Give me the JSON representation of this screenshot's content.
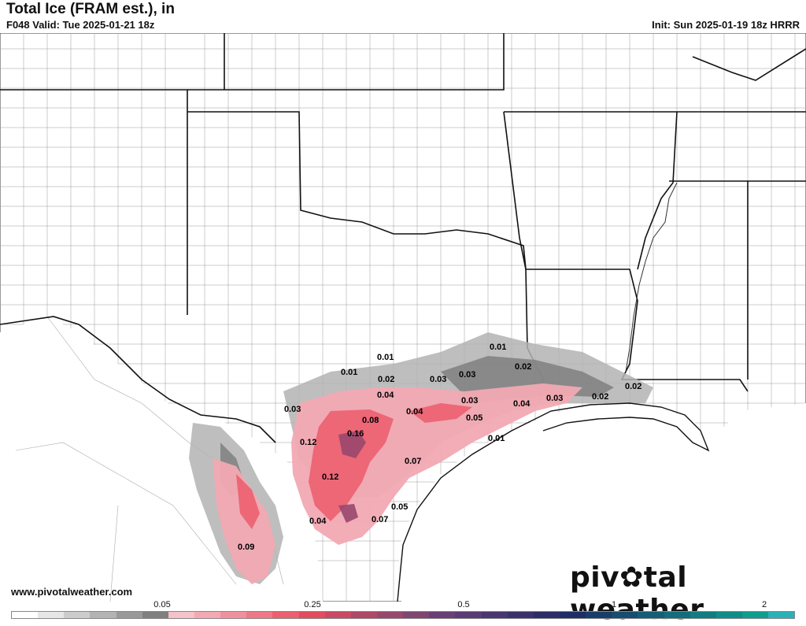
{
  "header": {
    "title": "Total Ice (FRAM est.), in",
    "valid": "F048 Valid: Tue 2025-01-21 18z",
    "init": "Init: Sun 2025-01-19 18z HRRR"
  },
  "footer": {
    "url": "www.pivotalweather.com",
    "brand_left": "piv",
    "brand_right": "tal weather"
  },
  "colorbar": {
    "colors": [
      "#ffffff",
      "#e6e6e6",
      "#cccccc",
      "#b3b3b3",
      "#999999",
      "#808080",
      "#f4c2c8",
      "#f2a9b3",
      "#f0909d",
      "#ee7886",
      "#ec5f70",
      "#e14c5f",
      "#c84a64",
      "#b04868",
      "#98476d",
      "#804672",
      "#6a3f75",
      "#5a3b73",
      "#4a3670",
      "#3b326d",
      "#2c2e6a",
      "#1d2d66",
      "#183d6a",
      "#164d70",
      "#145d76",
      "#126d7c",
      "#117d82",
      "#0f8d88",
      "#0e9d8e",
      "#2cb0b8"
    ],
    "ticks": [
      "0.05",
      "0.25",
      "0.5",
      "1",
      "2"
    ]
  },
  "map_labels": [
    {
      "text": "0.01"
    },
    {
      "text": "0.01"
    },
    {
      "text": "0.01"
    },
    {
      "text": "0.02"
    },
    {
      "text": "0.03"
    },
    {
      "text": "0.03"
    },
    {
      "text": "0.02"
    },
    {
      "text": "0.04"
    },
    {
      "text": "0.03"
    },
    {
      "text": "0.02"
    },
    {
      "text": "0.03"
    },
    {
      "text": "0.02"
    },
    {
      "text": "0.04"
    },
    {
      "text": "0.04"
    },
    {
      "text": "0.08"
    },
    {
      "text": "0.05"
    },
    {
      "text": "0.16"
    },
    {
      "text": "0.12"
    },
    {
      "text": "0.01"
    },
    {
      "text": "0.07"
    },
    {
      "text": "0.12"
    },
    {
      "text": "0.04"
    },
    {
      "text": "0.07"
    },
    {
      "text": "0.09"
    },
    {
      "text": "0.03"
    },
    {
      "text": "0.05"
    }
  ]
}
